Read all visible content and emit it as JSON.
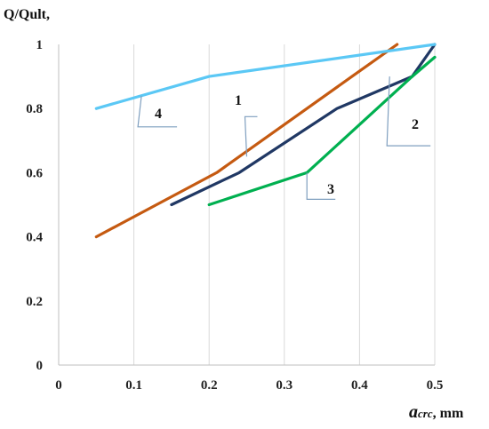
{
  "chart_data": {
    "type": "line",
    "title": "",
    "ylabel": "Q/Qult,",
    "xlabel": {
      "symbol": "a",
      "subscript": "crc",
      "unit": ", mm"
    },
    "xlim": [
      0,
      0.5
    ],
    "ylim": [
      0,
      1
    ],
    "x_ticks": [
      "0",
      "0.1",
      "0.2",
      "0.3",
      "0.4",
      "0.5"
    ],
    "y_ticks": [
      "0",
      "0.2",
      "0.4",
      "0.6",
      "0.8",
      "1"
    ],
    "grid": "vertical",
    "legend": "none",
    "series": [
      {
        "name": "1",
        "color": "#c55a11",
        "x": [
          0.05,
          0.21,
          0.33,
          0.39,
          0.45
        ],
        "y": [
          0.4,
          0.6,
          0.8,
          0.9,
          1.0
        ]
      },
      {
        "name": "2",
        "color": "#203864",
        "x": [
          0.15,
          0.24,
          0.37,
          0.47,
          0.5
        ],
        "y": [
          0.5,
          0.6,
          0.8,
          0.9,
          1.0
        ]
      },
      {
        "name": "3",
        "color": "#00b050",
        "x": [
          0.2,
          0.33,
          0.47,
          0.5
        ],
        "y": [
          0.5,
          0.6,
          0.9,
          0.96
        ]
      },
      {
        "name": "4",
        "color": "#5bc8f5",
        "x": [
          0.05,
          0.2,
          0.5
        ],
        "y": [
          0.8,
          0.9,
          1.0
        ]
      }
    ]
  }
}
